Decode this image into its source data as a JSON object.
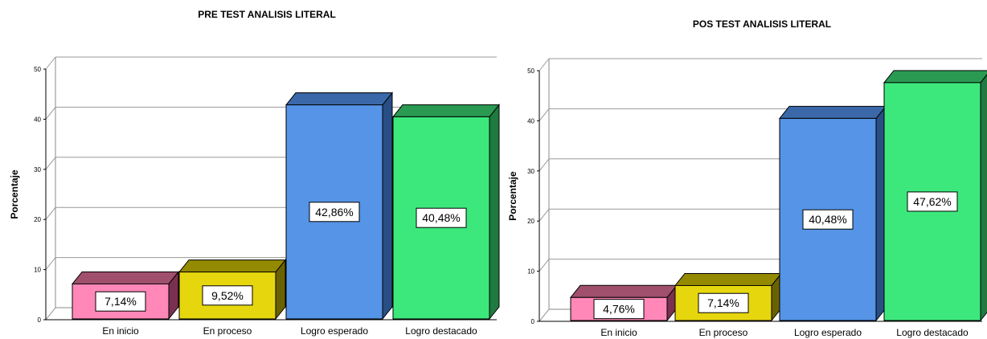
{
  "chart_data": [
    {
      "type": "bar",
      "title": "PRE TEST ANALISIS LITERAL",
      "ylabel": "Porcentaje",
      "xlabel": "",
      "categories": [
        "En inicio",
        "En proceso",
        "Logro esperado",
        "Logro destacado"
      ],
      "values": [
        7.14,
        9.52,
        42.86,
        40.48
      ],
      "value_labels": [
        "7,14%",
        "9,52%",
        "42,86%",
        "40,48%"
      ],
      "yticks": [
        "0",
        "10",
        "20",
        "30",
        "40",
        "50"
      ],
      "ylim": [
        0,
        50
      ],
      "grid": true,
      "style": "3d-bar",
      "colors": [
        "#ff88b8",
        "#e6d60e",
        "#5594e6",
        "#3ce87c"
      ],
      "top_colors": [
        "#a0506c",
        "#948a00",
        "#3a68a8",
        "#2a9a52"
      ],
      "side_colors": [
        "#7a3050",
        "#6a6200",
        "#284e84",
        "#1e7a40"
      ]
    },
    {
      "type": "bar",
      "title": "POS TEST ANALISIS LITERAL",
      "ylabel": "Porcentaje",
      "xlabel": "",
      "categories": [
        "En inicio",
        "En proceso",
        "Logro esperado",
        "Logro destacado"
      ],
      "values": [
        4.76,
        7.14,
        40.48,
        47.62
      ],
      "value_labels": [
        "4,76%",
        "7,14%",
        "40,48%",
        "47,62%"
      ],
      "yticks": [
        "0",
        "10",
        "20",
        "30",
        "40",
        "50"
      ],
      "ylim": [
        0,
        50
      ],
      "grid": true,
      "style": "3d-bar",
      "colors": [
        "#ff88b8",
        "#e6d60e",
        "#5594e6",
        "#3ce87c"
      ],
      "top_colors": [
        "#a0506c",
        "#948a00",
        "#3a68a8",
        "#2a9a52"
      ],
      "side_colors": [
        "#7a3050",
        "#6a6200",
        "#284e84",
        "#1e7a40"
      ]
    }
  ]
}
